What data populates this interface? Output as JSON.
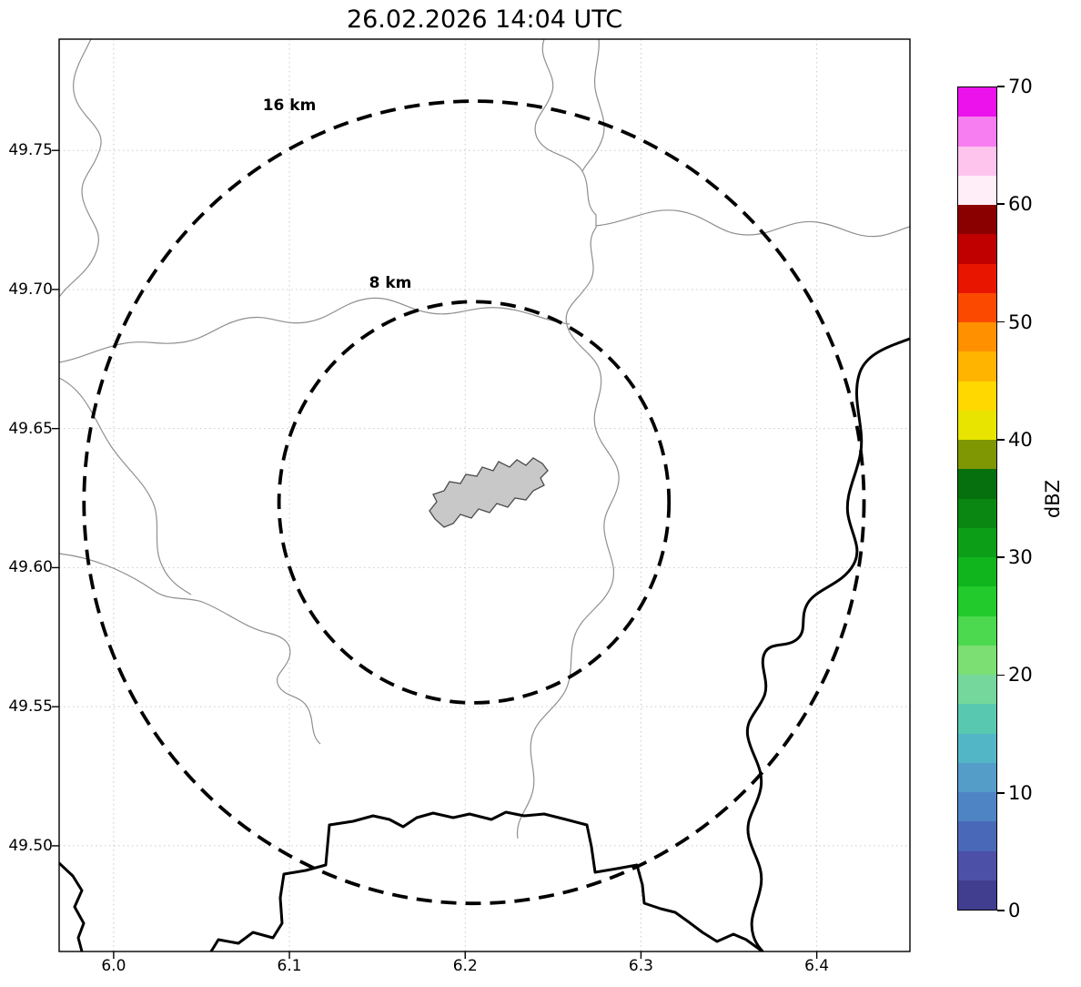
{
  "figure": {
    "title": "26.02.2026 14:04 UTC"
  },
  "chart_data": {
    "type": "map",
    "subtype": "weather-radar-range-ring-map",
    "title": "26.02.2026 14:04 UTC",
    "xlim": [
      5.969,
      6.453
    ],
    "ylim": [
      49.462,
      49.79
    ],
    "x_ticks": [
      "6.0",
      "6.1",
      "6.2",
      "6.3",
      "6.4"
    ],
    "x_tick_values": [
      6.0,
      6.1,
      6.2,
      6.3,
      6.4
    ],
    "y_ticks": [
      "49.50",
      "49.55",
      "49.60",
      "49.65",
      "49.70",
      "49.75"
    ],
    "y_tick_values": [
      49.5,
      49.55,
      49.6,
      49.65,
      49.7,
      49.75
    ],
    "grid": "dotted",
    "radar_center": {
      "lon": 6.205,
      "lat": 49.6235
    },
    "range_rings": [
      {
        "radius_km": 8,
        "label": "8 km"
      },
      {
        "radius_km": 16,
        "label": "16 km"
      }
    ],
    "echoes": [],
    "legend_position": "right-colorbar"
  },
  "colorbar": {
    "label": "dBZ",
    "min": 0,
    "max": 70,
    "tick_labels": [
      "0",
      "10",
      "20",
      "30",
      "40",
      "50",
      "60",
      "70"
    ],
    "tick_values": [
      0,
      10,
      20,
      30,
      40,
      50,
      60,
      70
    ],
    "colors_bottom_to_top": [
      "#413d8f",
      "#4c50a6",
      "#4a68b8",
      "#4f84c4",
      "#549dc9",
      "#53b6c6",
      "#58c9b0",
      "#75d79b",
      "#7cdf74",
      "#4cd94f",
      "#22cb2b",
      "#10b41d",
      "#0d9e18",
      "#098712",
      "#05700d",
      "#7e9703",
      "#e8e400",
      "#ffd800",
      "#ffb400",
      "#ff9000",
      "#fb4a00",
      "#e81600",
      "#c00000",
      "#8a0000",
      "#ffeef8",
      "#ffc4ee",
      "#f77ef0",
      "#ec12ec"
    ]
  },
  "map_features": {
    "thin_line_feature": "rivers-and-district-boundaries",
    "thin_line_color": "#8f8f8f",
    "thick_line_feature": "national-border-rivers",
    "thick_line_color": "#000000",
    "filled_shape_feature": "city-boundary",
    "filled_shape_color": "#c8c8c8"
  }
}
